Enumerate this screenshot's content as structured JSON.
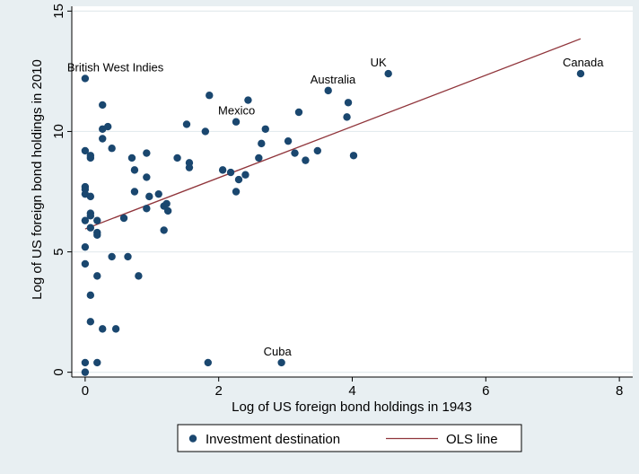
{
  "chart_data": {
    "type": "scatter",
    "xlabel": "Log of US foreign bond holdings in 1943",
    "ylabel": "Log of US foreign bond holdings in 2010",
    "xlim": [
      -0.2,
      8.2
    ],
    "ylim": [
      -0.2,
      15.2
    ],
    "xticks": [
      0,
      2,
      4,
      6,
      8
    ],
    "yticks": [
      0,
      5,
      10,
      15
    ],
    "grid": "horizontal",
    "legend_placement": "bottom",
    "colors": {
      "marker": "#1a476f",
      "line": "#90353b"
    },
    "series": [
      {
        "name": "Investment destination",
        "points": [
          [
            0.0,
            12.2
          ],
          [
            0.0,
            9.2
          ],
          [
            0.0,
            7.7
          ],
          [
            0.0,
            7.6
          ],
          [
            0.0,
            7.4
          ],
          [
            0.0,
            6.3
          ],
          [
            0.0,
            5.2
          ],
          [
            0.0,
            4.5
          ],
          [
            0.0,
            0.4
          ],
          [
            0.0,
            0.0
          ],
          [
            0.08,
            9.0
          ],
          [
            0.08,
            8.9
          ],
          [
            0.08,
            6.6
          ],
          [
            0.08,
            6.5
          ],
          [
            0.08,
            7.3
          ],
          [
            0.08,
            6.0
          ],
          [
            0.08,
            3.2
          ],
          [
            0.08,
            2.1
          ],
          [
            0.18,
            6.3
          ],
          [
            0.18,
            5.8
          ],
          [
            0.18,
            5.7
          ],
          [
            0.18,
            4.0
          ],
          [
            0.18,
            0.4
          ],
          [
            0.26,
            11.1
          ],
          [
            0.26,
            10.1
          ],
          [
            0.26,
            9.7
          ],
          [
            0.26,
            1.8
          ],
          [
            0.34,
            10.2
          ],
          [
            0.4,
            9.3
          ],
          [
            0.4,
            4.8
          ],
          [
            0.46,
            1.8
          ],
          [
            0.58,
            6.4
          ],
          [
            0.64,
            4.8
          ],
          [
            0.7,
            8.9
          ],
          [
            0.74,
            8.4
          ],
          [
            0.74,
            7.5
          ],
          [
            0.8,
            4.0
          ],
          [
            0.92,
            9.1
          ],
          [
            0.92,
            8.1
          ],
          [
            0.92,
            6.8
          ],
          [
            0.96,
            7.3
          ],
          [
            1.1,
            7.4
          ],
          [
            1.18,
            6.9
          ],
          [
            1.18,
            5.9
          ],
          [
            1.22,
            7.0
          ],
          [
            1.24,
            6.7
          ],
          [
            1.38,
            8.9
          ],
          [
            1.52,
            10.3
          ],
          [
            1.56,
            8.7
          ],
          [
            1.56,
            8.5
          ],
          [
            1.8,
            10.0
          ],
          [
            1.84,
            0.4
          ],
          [
            1.86,
            11.5
          ],
          [
            2.06,
            8.4
          ],
          [
            2.18,
            8.3
          ],
          [
            2.26,
            10.4
          ],
          [
            2.26,
            7.5
          ],
          [
            2.3,
            8.0
          ],
          [
            2.4,
            8.2
          ],
          [
            2.44,
            11.3
          ],
          [
            2.6,
            8.9
          ],
          [
            2.64,
            9.5
          ],
          [
            2.7,
            10.1
          ],
          [
            2.94,
            0.4
          ],
          [
            3.04,
            9.6
          ],
          [
            3.14,
            9.1
          ],
          [
            3.2,
            10.8
          ],
          [
            3.3,
            8.8
          ],
          [
            3.48,
            9.2
          ],
          [
            3.64,
            11.7
          ],
          [
            3.92,
            10.6
          ],
          [
            3.94,
            11.2
          ],
          [
            4.02,
            9.0
          ],
          [
            4.54,
            12.4
          ],
          [
            7.42,
            12.4
          ]
        ]
      },
      {
        "name": "OLS line",
        "x": [
          0.0,
          7.42
        ],
        "y": [
          5.95,
          13.85
        ]
      }
    ],
    "annotations": [
      {
        "text": "British West Indies",
        "x": 0.0,
        "y": 12.2
      },
      {
        "text": "Mexico",
        "x": 2.26,
        "y": 10.4
      },
      {
        "text": "Australia",
        "x": 3.64,
        "y": 11.7
      },
      {
        "text": "UK",
        "x": 4.54,
        "y": 12.4
      },
      {
        "text": "Canada",
        "x": 7.42,
        "y": 12.4
      },
      {
        "text": "Cuba",
        "x": 2.94,
        "y": 0.4
      }
    ]
  }
}
